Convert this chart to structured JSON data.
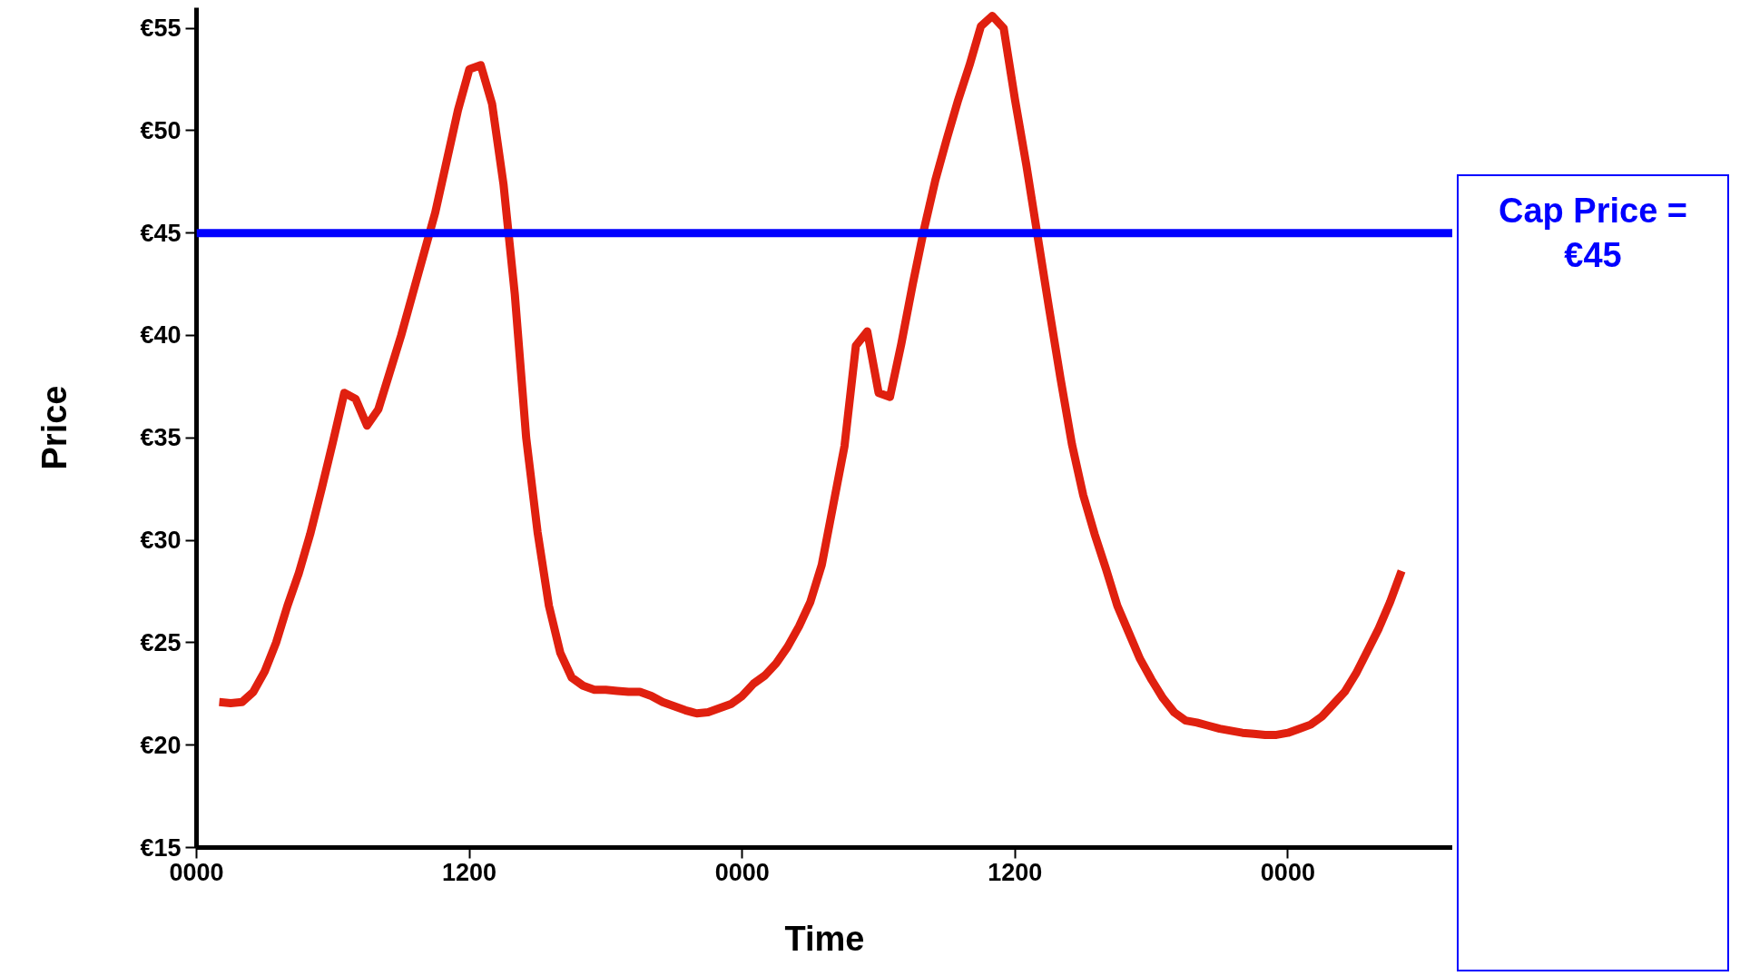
{
  "chart_data": {
    "type": "line",
    "xlabel": "Time",
    "ylabel": "Price",
    "categories": [
      "0000",
      null,
      null,
      null,
      null,
      null,
      null,
      null,
      null,
      null,
      null,
      null,
      null,
      null,
      null,
      null,
      null,
      null,
      null,
      null,
      null,
      null,
      null,
      null,
      "1200",
      null,
      null,
      null,
      null,
      null,
      null,
      null,
      null,
      null,
      null,
      null,
      null,
      null,
      null,
      null,
      null,
      null,
      null,
      null,
      null,
      null,
      null,
      null,
      "0000",
      null,
      null,
      null,
      null,
      null,
      null,
      null,
      null,
      null,
      null,
      null,
      null,
      null,
      null,
      null,
      null,
      null,
      null,
      null,
      null,
      null,
      null,
      null,
      "1200",
      null,
      null,
      null,
      null,
      null,
      null,
      null,
      null,
      null,
      null,
      null,
      null,
      null,
      null,
      null,
      null,
      null,
      null,
      null,
      null,
      null,
      null,
      null,
      "0000",
      null,
      null,
      null,
      null,
      null,
      null,
      null,
      null,
      null,
      null,
      null,
      null,
      null,
      null
    ],
    "ylim": [
      15,
      56
    ],
    "yticks": [
      {
        "value": 15,
        "label": "€15"
      },
      {
        "value": 20,
        "label": "€20"
      },
      {
        "value": 25,
        "label": "€25"
      },
      {
        "value": 30,
        "label": "€30"
      },
      {
        "value": 35,
        "label": "€35"
      },
      {
        "value": 40,
        "label": "€40"
      },
      {
        "value": 45,
        "label": "€45"
      },
      {
        "value": 50,
        "label": "€50"
      },
      {
        "value": 55,
        "label": "€55"
      }
    ],
    "grid": false,
    "marker": "none",
    "line_style": "solid",
    "series": [
      {
        "color": "#e0200f",
        "values": [
          null,
          null,
          22.1,
          22.05,
          22.1,
          22.6,
          23.6,
          25.0,
          26.8,
          28.4,
          30.3,
          32.5,
          34.8,
          37.2,
          36.9,
          35.6,
          36.4,
          38.2,
          40.0,
          42.0,
          44.0,
          46.0,
          48.5,
          51.0,
          53.0,
          53.2,
          51.3,
          47.4,
          42.0,
          35.0,
          30.4,
          26.8,
          24.5,
          23.3,
          22.9,
          22.7,
          22.7,
          22.65,
          22.6,
          22.6,
          22.4,
          22.1,
          21.9,
          21.7,
          21.55,
          21.6,
          21.8,
          22.0,
          22.4,
          23.0,
          23.4,
          24.0,
          24.8,
          25.8,
          27.0,
          28.8,
          31.7,
          34.6,
          39.5,
          40.2,
          37.2,
          37.0,
          39.6,
          42.5,
          45.2,
          47.6,
          49.6,
          51.5,
          53.2,
          55.1,
          55.6,
          55.0,
          51.5,
          48.3,
          44.8,
          41.3,
          37.9,
          34.7,
          32.2,
          30.3,
          28.6,
          26.8,
          25.5,
          24.2,
          23.2,
          22.3,
          21.6,
          21.2,
          21.1,
          20.95,
          20.8,
          20.7,
          20.6,
          20.55,
          20.5,
          20.5,
          20.6,
          20.8,
          21.0,
          21.4,
          22.0,
          22.6,
          23.5,
          24.6,
          25.7,
          27.0,
          28.5,
          null,
          null,
          null,
          null
        ]
      }
    ],
    "ref_lines": [
      {
        "axis": "y",
        "value": 45,
        "label": "Cap Price =\n€45",
        "color": "#0000ff",
        "line_style": "solid"
      }
    ]
  }
}
